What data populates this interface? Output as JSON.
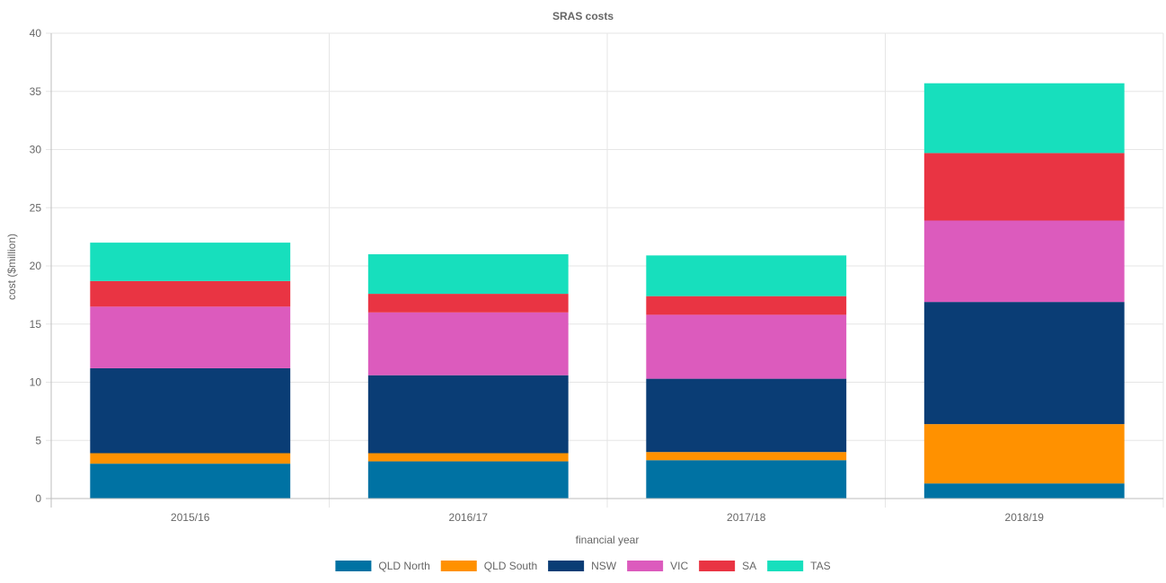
{
  "chart_data": {
    "type": "bar",
    "stacked": true,
    "title": "SRAS costs",
    "xlabel": "financial year",
    "ylabel": "cost ($million)",
    "ylim": [
      0,
      40
    ],
    "yticks": [
      "0",
      "5",
      "10",
      "15",
      "20",
      "25",
      "30",
      "35",
      "40"
    ],
    "grid": true,
    "legend_position": "bottom",
    "categories": [
      "2015/16",
      "2016/17",
      "2017/18",
      "2018/19"
    ],
    "series": [
      {
        "name": "QLD North",
        "color": "#0072a3",
        "values": [
          3.0,
          3.2,
          3.3,
          1.3
        ]
      },
      {
        "name": "QLD South",
        "color": "#ff9100",
        "values": [
          0.9,
          0.7,
          0.7,
          5.1
        ]
      },
      {
        "name": "NSW",
        "color": "#0a3d75",
        "values": [
          7.3,
          6.7,
          6.3,
          10.5
        ]
      },
      {
        "name": "VIC",
        "color": "#dc5bbd",
        "values": [
          5.3,
          5.4,
          5.5,
          7.0
        ]
      },
      {
        "name": "SA",
        "color": "#e93443",
        "values": [
          2.2,
          1.6,
          1.6,
          5.8
        ]
      },
      {
        "name": "TAS",
        "color": "#17dfbd",
        "values": [
          3.3,
          3.4,
          3.5,
          6.0
        ]
      }
    ]
  }
}
